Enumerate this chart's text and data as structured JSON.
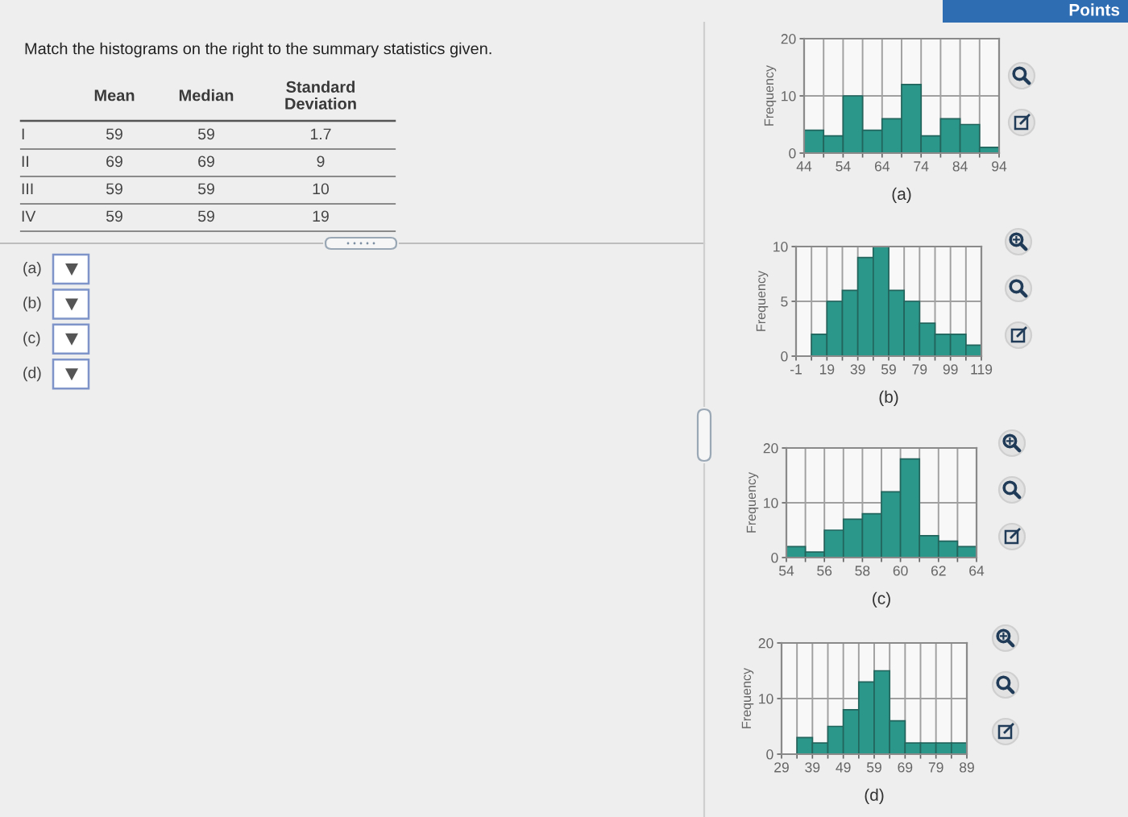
{
  "chart_data": [
    {
      "type": "other",
      "title": "Match the histograms on the right to the summary statistics given.",
      "annotations": [
        "Mean",
        "Median",
        "Standard\nDeviation",
        "I",
        "59",
        "59",
        "1.7",
        "II",
        "69",
        "69",
        "9",
        "III",
        "59",
        "59",
        "10",
        "IV",
        "59",
        "59",
        "19",
        "(a)",
        "(b)",
        "(c)",
        "(d)",
        "Points"
      ]
    },
    {
      "type": "histogram",
      "bins": [
        44,
        49,
        54,
        59,
        64,
        69,
        74,
        79,
        84,
        89,
        94
      ],
      "values": [
        4,
        3,
        10,
        4,
        6,
        12,
        3,
        6,
        5,
        1
      ],
      "color": "#2b968a",
      "xlim": [
        44,
        94
      ],
      "ylim": [
        0,
        20
      ],
      "xticks": [
        44,
        {
          "value": 49,
          "label": null
        },
        54,
        {
          "value": 59,
          "label": null
        },
        64,
        {
          "value": 69,
          "label": null
        },
        74,
        {
          "value": 79,
          "label": null
        },
        84,
        {
          "value": 89,
          "label": null
        },
        94
      ],
      "yticks": [
        0,
        10,
        20
      ],
      "xlabel": "(a)",
      "ylabel": "Frequency",
      "grid": true
    },
    {
      "type": "histogram",
      "bins": [
        9,
        19,
        29,
        39,
        49,
        59,
        69,
        79,
        89,
        99,
        109,
        119
      ],
      "values": [
        2,
        5,
        6,
        9,
        10,
        6,
        5,
        3,
        2,
        2,
        1
      ],
      "color": "#2b968a",
      "xlim": [
        -1,
        119
      ],
      "ylim": [
        0,
        10
      ],
      "xticks": [
        -1,
        {
          "value": 9,
          "label": null
        },
        19,
        {
          "value": 29,
          "label": null
        },
        39,
        {
          "value": 49,
          "label": null
        },
        59,
        {
          "value": 69,
          "label": null
        },
        79,
        {
          "value": 89,
          "label": null
        },
        99,
        {
          "value": 109,
          "label": null
        },
        119
      ],
      "yticks": [
        0,
        5,
        10
      ],
      "xlabel": "(b)",
      "ylabel": "Frequency",
      "grid": true
    },
    {
      "type": "histogram",
      "bins": [
        54,
        55,
        56,
        57,
        58,
        59,
        60,
        61,
        62,
        63,
        64
      ],
      "values": [
        2,
        1,
        5,
        7,
        8,
        12,
        18,
        4,
        3,
        2
      ],
      "color": "#2b968a",
      "xlim": [
        54,
        64
      ],
      "ylim": [
        0,
        20
      ],
      "xticks": [
        54,
        {
          "value": 55,
          "label": null
        },
        56,
        {
          "value": 57,
          "label": null
        },
        58,
        {
          "value": 59,
          "label": null
        },
        60,
        {
          "value": 61,
          "label": null
        },
        62,
        {
          "value": 63,
          "label": null
        },
        64
      ],
      "yticks": [
        0,
        10,
        20
      ],
      "xlabel": "(c)",
      "ylabel": "Frequency",
      "grid": true
    },
    {
      "type": "histogram",
      "bins": [
        34,
        39,
        44,
        49,
        54,
        59,
        64,
        69,
        74,
        79,
        84,
        89
      ],
      "values": [
        3,
        2,
        5,
        8,
        13,
        15,
        6,
        2,
        2,
        2,
        2
      ],
      "color": "#2b968a",
      "xlim": [
        29,
        89
      ],
      "ylim": [
        0,
        20
      ],
      "xticks": [
        29,
        {
          "value": 34,
          "label": null
        },
        39,
        {
          "value": 44,
          "label": null
        },
        49,
        {
          "value": 54,
          "label": null
        },
        59,
        {
          "value": 64,
          "label": null
        },
        69,
        {
          "value": 74,
          "label": null
        },
        79,
        {
          "value": 84,
          "label": null
        },
        89
      ],
      "yticks": [
        0,
        10,
        20
      ],
      "xlabel": "(d)",
      "ylabel": "Frequency",
      "grid": true
    }
  ]
}
